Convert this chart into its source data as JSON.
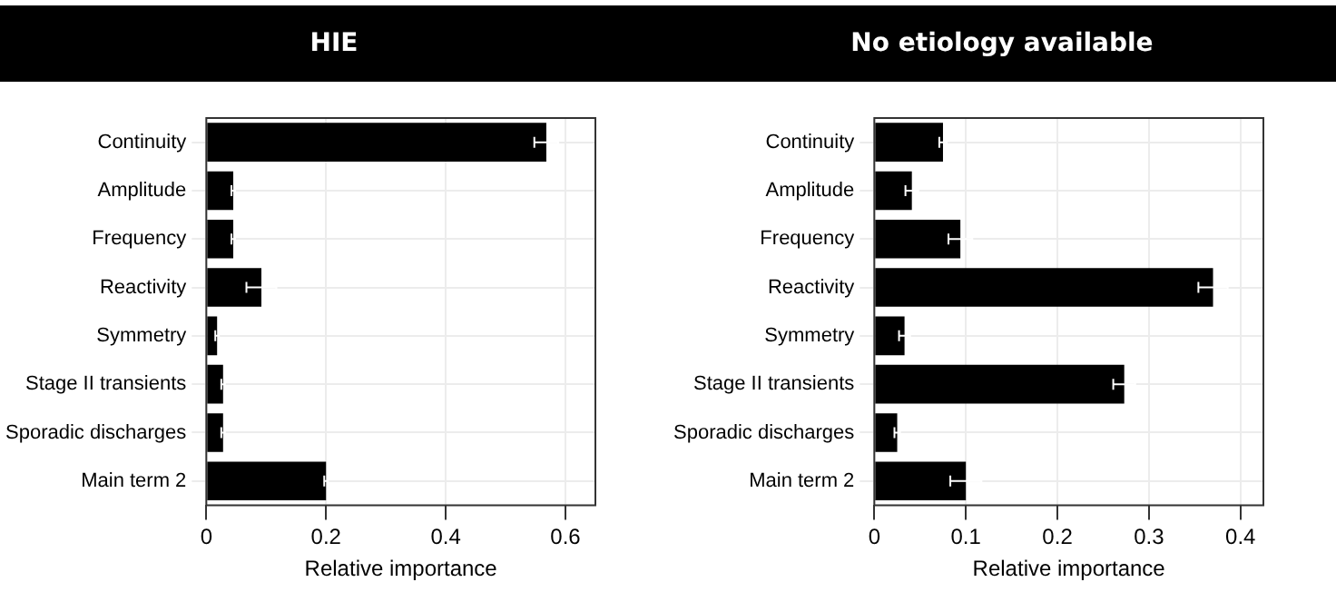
{
  "chart_data": [
    {
      "type": "bar",
      "orientation": "horizontal",
      "title": "HIE",
      "xlabel": "Relative importance",
      "categories": [
        "Continuity",
        "Amplitude",
        "Frequency",
        "Reactivity",
        "Symmetry",
        "Stage II transients",
        "Sporadic discharges",
        "Main term 2"
      ],
      "values": [
        0.568,
        0.045,
        0.045,
        0.092,
        0.018,
        0.028,
        0.028,
        0.2
      ],
      "errors": [
        0.02,
        0.003,
        0.003,
        0.025,
        0.003,
        0.003,
        0.003,
        0.003
      ],
      "color": "#000000",
      "xlim": [
        0,
        0.65
      ],
      "xticks": [
        0,
        0.2,
        0.4,
        0.6
      ],
      "grid": true
    },
    {
      "type": "bar",
      "orientation": "horizontal",
      "title": "No etiology available",
      "xlabel": "Relative importance",
      "categories": [
        "Continuity",
        "Amplitude",
        "Frequency",
        "Reactivity",
        "Symmetry",
        "Stage II transients",
        "Sporadic discharges",
        "Main term 2"
      ],
      "values": [
        0.075,
        0.041,
        0.094,
        0.37,
        0.033,
        0.273,
        0.025,
        0.1
      ],
      "errors": [
        0.004,
        0.007,
        0.013,
        0.016,
        0.006,
        0.012,
        0.003,
        0.017
      ],
      "color": "#000000",
      "xlim": [
        0,
        0.425
      ],
      "xticks": [
        0,
        0.1,
        0.2,
        0.3,
        0.4
      ],
      "grid": true
    }
  ]
}
